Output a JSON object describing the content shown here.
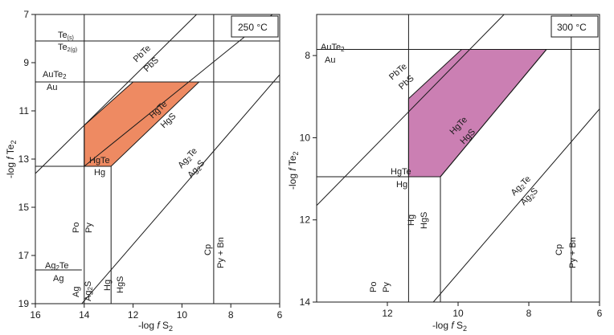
{
  "chart_data": [
    {
      "type": "phase-diagram",
      "temperature_label": "250 °C",
      "xlabel": "-log f S₂",
      "ylabel": "-log f Te₂",
      "xlim": [
        16,
        6
      ],
      "ylim": [
        7,
        19
      ],
      "xticks": [
        16,
        14,
        12,
        10,
        8,
        6
      ],
      "yticks": [
        7,
        9,
        11,
        13,
        15,
        17,
        19
      ],
      "fill_color": "#ee8a62",
      "stable_field": [
        [
          14,
          11.6
        ],
        [
          12,
          9.8
        ],
        [
          9.3,
          9.8
        ],
        [
          12.9,
          13.3
        ],
        [
          14,
          13.3
        ]
      ],
      "boundaries": [
        {
          "name": "Te(s)/Te2(g)",
          "points": [
            [
              16,
              8.1
            ],
            [
              6,
              8.1
            ]
          ]
        },
        {
          "name": "AuTe2/Au",
          "points": [
            [
              16,
              9.8
            ],
            [
              6,
              9.8
            ]
          ]
        },
        {
          "name": "PbTe/PbS",
          "points": [
            [
              16,
              13.6
            ],
            [
              9.4,
              7
            ]
          ]
        },
        {
          "name": "HgTe/HgS",
          "points": [
            [
              14,
              13.3
            ],
            [
              6.3,
              7
            ]
          ]
        },
        {
          "name": "HgTe/Hg",
          "points": [
            [
              16,
              13.3
            ],
            [
              12.9,
              13.3
            ]
          ]
        },
        {
          "name": "Hg/HgS",
          "points": [
            [
              12.9,
              13.3
            ],
            [
              12.9,
              19
            ]
          ]
        },
        {
          "name": "Po/Py",
          "points": [
            [
              14,
              7
            ],
            [
              14,
              19
            ]
          ]
        },
        {
          "name": "Ag2Te/Ag2S",
          "points": [
            [
              14.1,
              19
            ],
            [
              6,
              9.5
            ]
          ]
        },
        {
          "name": "Ag2Te/Ag",
          "points": [
            [
              16,
              17.6
            ],
            [
              14.1,
              17.6
            ]
          ]
        },
        {
          "name": "Cp/Py + Bn",
          "points": [
            [
              8.7,
              7
            ],
            [
              8.7,
              19
            ]
          ]
        }
      ],
      "labels": {
        "te_s": "Te",
        "te_s_sub": "(s)",
        "te_g": "Te",
        "te_g_sub": "2(g)",
        "aute2": "AuTe",
        "aute2_sub": "2",
        "au": "Au",
        "pbte": "PbTe",
        "pbs": "PbS",
        "hgte_diag": "HgTe",
        "hgs_diag": "HgS",
        "hgte": "HgTe",
        "hg": "Hg",
        "ag2te_diag": "Ag",
        "ag2te_diag_sub": "2",
        "ag2te_diag_rest": "Te",
        "ag2s_diag": "Ag",
        "ag2s_diag_sub": "2",
        "ag2s_diag_rest": "S",
        "po": "Po",
        "py": "Py",
        "ag2te": "Ag",
        "ag2te_sub": "2",
        "ag2te_rest": "Te",
        "ag": "Ag",
        "ag_v": "Ag",
        "ag2s_v": "Ag",
        "ag2s_v_sub": "2",
        "ag2s_v_rest": "S",
        "hg_v": "Hg",
        "hgs_v": "HgS",
        "cp": "Cp",
        "pybn": "Py + Bn"
      }
    },
    {
      "type": "phase-diagram",
      "temperature_label": "300 °C",
      "xlabel": "-log f S₂",
      "ylabel": "-log f Te₂",
      "xlim": [
        14,
        6
      ],
      "ylim": [
        7,
        14
      ],
      "xticks": [
        12,
        10,
        8,
        6
      ],
      "yticks": [
        8,
        10,
        12,
        14
      ],
      "fill_color": "#cb7fb3",
      "stable_field": [
        [
          11.4,
          9.05
        ],
        [
          9.9,
          7.85
        ],
        [
          7.5,
          7.85
        ],
        [
          10.5,
          10.95
        ],
        [
          11.4,
          10.95
        ]
      ],
      "boundaries": [
        {
          "name": "AuTe2/Au",
          "points": [
            [
              14,
              7.85
            ],
            [
              6,
              7.85
            ]
          ]
        },
        {
          "name": "PbTe/PbS",
          "points": [
            [
              14,
              11.65
            ],
            [
              8.7,
              7
            ]
          ]
        },
        {
          "name": "HgTe/HgS",
          "points": [
            [
              10.5,
              10.95
            ],
            [
              7.5,
              7.85
            ]
          ]
        },
        {
          "name": "HgTe/Hg",
          "points": [
            [
              14,
              10.95
            ],
            [
              10.5,
              10.95
            ]
          ]
        },
        {
          "name": "Hg/HgS",
          "points": [
            [
              10.5,
              10.95
            ],
            [
              10.5,
              14
            ]
          ]
        },
        {
          "name": "Po/Py",
          "points": [
            [
              11.4,
              7
            ],
            [
              11.4,
              14
            ]
          ]
        },
        {
          "name": "Ag2Te/Ag2S",
          "points": [
            [
              10.7,
              14
            ],
            [
              6,
              9.3
            ]
          ]
        },
        {
          "name": "Cp/Py + Bn",
          "points": [
            [
              6.8,
              7
            ],
            [
              6.8,
              14
            ]
          ]
        }
      ],
      "labels": {
        "aute2": "AuTe",
        "aute2_sub": "2",
        "au": "Au",
        "pbte": "PbTe",
        "pbs": "PbS",
        "hgte_diag": "HgTe",
        "hgs_diag": "HgS",
        "hgte": "HgTe",
        "hg": "Hg",
        "hg_v": "Hg",
        "hgs_v": "HgS",
        "ag2te_diag": "Ag",
        "ag2te_diag_sub": "2",
        "ag2te_diag_rest": "Te",
        "ag2s_diag": "Ag",
        "ag2s_diag_sub": "2",
        "ag2s_diag_rest": "S",
        "po": "Po",
        "py": "Py",
        "cp": "Cp",
        "pybn": "Py + Bn"
      }
    }
  ]
}
